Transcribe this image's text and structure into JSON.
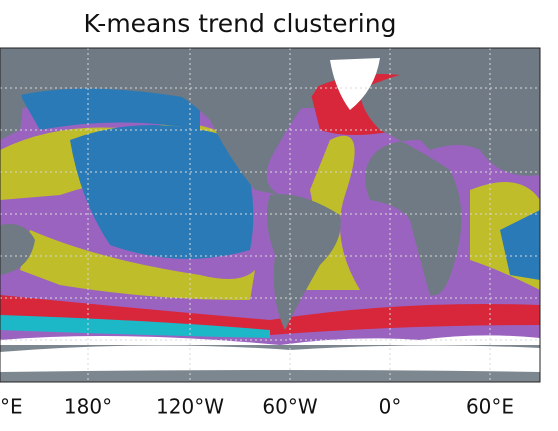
{
  "title": "K-means trend clustering",
  "map": {
    "lon_labels": [
      "°E",
      "180°",
      "120°W",
      "60°W",
      "0°",
      "60°E"
    ]
  }
}
